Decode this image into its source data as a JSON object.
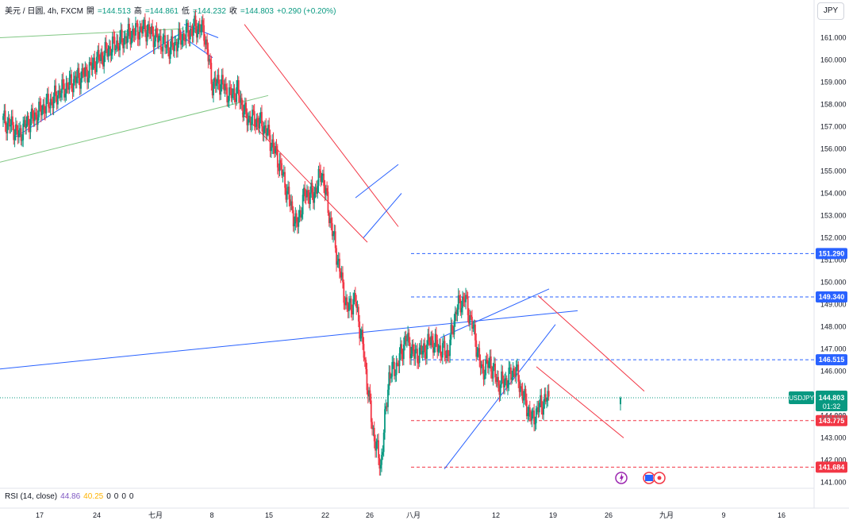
{
  "header": {
    "symbol": "美元 / 日圆, 4h, FXCM",
    "open_label": "開",
    "open": "=144.513",
    "high_label": "高",
    "high": "=144.861",
    "low_label": "低",
    "low": "=144.232",
    "close_label": "收",
    "close": "=144.803",
    "change": "+0.290 (+0.20%)"
  },
  "currency_button": "JPY",
  "rsi": {
    "label": "RSI (14, close)",
    "value1": "44.86",
    "value2": "40.25",
    "zeros": [
      "0",
      "0",
      "0",
      "0"
    ]
  },
  "colors": {
    "up": "#089981",
    "down": "#f23645",
    "trend_blue": "#2962ff",
    "trend_red": "#f23645",
    "trend_green": "#81c784",
    "grid": "#f0f3fa"
  },
  "chart_data": {
    "type": "candlestick",
    "title": "",
    "y_axis": {
      "ticks": [
        "141.000",
        "142.000",
        "143.000",
        "144.000",
        "145.000",
        "146.000",
        "147.000",
        "148.000",
        "149.000",
        "150.000",
        "151.000",
        "152.000",
        "153.000",
        "154.000",
        "155.000",
        "156.000",
        "157.000",
        "158.000",
        "159.000",
        "160.000",
        "161.000"
      ],
      "range": [
        141.0,
        161.6
      ]
    },
    "x_axis": {
      "ticks": [
        "17",
        "24",
        "七月",
        "8",
        "15",
        "22",
        "26",
        "八月",
        "12",
        "19",
        "26",
        "九月",
        "9",
        "16"
      ]
    },
    "price_path": [
      [
        17,
        157.3
      ],
      [
        18,
        157.1
      ],
      [
        19,
        156.6
      ],
      [
        20,
        157.2
      ],
      [
        21,
        157.5
      ],
      [
        22,
        157.9
      ],
      [
        23,
        158.2
      ],
      [
        24,
        158.6
      ],
      [
        25,
        158.9
      ],
      [
        26,
        159.2
      ],
      [
        27,
        159.4
      ],
      [
        28,
        159.9
      ],
      [
        29,
        160.2
      ],
      [
        30,
        160.6
      ],
      [
        31,
        160.8
      ],
      [
        32,
        161.1
      ],
      [
        33,
        161.3
      ],
      [
        34,
        161.4
      ],
      [
        35,
        161.1
      ],
      [
        36,
        160.8
      ],
      [
        37,
        160.5
      ],
      [
        38,
        160.9
      ],
      [
        39,
        161.2
      ],
      [
        40,
        161.5
      ],
      [
        41,
        161.3
      ],
      [
        42,
        158.9
      ],
      [
        43,
        159.0
      ],
      [
        44,
        158.4
      ],
      [
        45,
        158.6
      ],
      [
        46,
        157.4
      ],
      [
        47,
        157.3
      ],
      [
        48,
        157.1
      ],
      [
        49,
        156.3
      ],
      [
        50,
        155.3
      ],
      [
        51,
        153.9
      ],
      [
        52,
        152.5
      ],
      [
        53,
        154.0
      ],
      [
        54,
        153.9
      ],
      [
        55,
        155.0
      ],
      [
        56,
        152.8
      ],
      [
        57,
        150.8
      ],
      [
        58,
        148.8
      ],
      [
        59,
        149.2
      ],
      [
        60,
        146.8
      ],
      [
        61,
        143.5
      ],
      [
        62,
        141.7
      ],
      [
        63,
        145.8
      ],
      [
        64,
        146.3
      ],
      [
        65,
        147.5
      ],
      [
        66,
        146.7
      ],
      [
        67,
        146.9
      ],
      [
        68,
        147.4
      ],
      [
        69,
        147.0
      ],
      [
        70,
        146.8
      ],
      [
        71,
        148.8
      ],
      [
        72,
        149.3
      ],
      [
        73,
        147.9
      ],
      [
        74,
        146.0
      ],
      [
        75,
        146.4
      ],
      [
        76,
        145.4
      ],
      [
        77,
        145.6
      ],
      [
        78,
        146.1
      ],
      [
        79,
        144.8
      ],
      [
        80,
        143.8
      ],
      [
        81,
        144.5
      ],
      [
        82,
        144.8
      ]
    ],
    "last_candle": {
      "open": 144.513,
      "high": 144.861,
      "low": 144.232,
      "close": 144.803
    },
    "horizontal_levels": [
      {
        "value": "151.290",
        "color": "#2962ff"
      },
      {
        "value": "149.340",
        "color": "#2962ff"
      },
      {
        "value": "146.515",
        "color": "#2962ff"
      },
      {
        "value": "143.775",
        "color": "#f23645"
      },
      {
        "value": "141.684",
        "color": "#f23645"
      }
    ],
    "current_price_tag": {
      "label": "USDJPY",
      "value": "144.803",
      "countdown": "01:32",
      "color": "#089981"
    },
    "overlap_label": "144.000",
    "event_icons": [
      "lightning-icon",
      "us-flag-icon",
      "record-icon"
    ]
  }
}
